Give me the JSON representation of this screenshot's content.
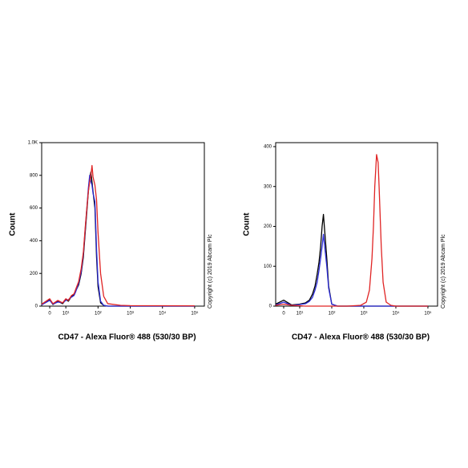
{
  "chart_data": [
    {
      "type": "line",
      "x_label": "CD47 - Alexa Fluor® 488 (530/30 BP)",
      "y_label": "Count",
      "copyright": "Copyright (c) 2019 Abcam Plc",
      "xscale": "biexponential",
      "xlim": [
        -5,
        200000
      ],
      "xticks": [
        0,
        {
          "value": 10,
          "label": "10¹"
        },
        {
          "value": 100,
          "label": "10²"
        },
        {
          "value": 1000,
          "label": "10³"
        },
        {
          "value": 10000,
          "label": "10⁴"
        },
        {
          "value": 100000,
          "label": "10⁵"
        }
      ],
      "ylim": [
        0,
        1000
      ],
      "yticks": [
        0,
        200,
        400,
        600,
        800,
        {
          "value": 1000,
          "label": "1.0K"
        }
      ],
      "x": [
        -5,
        0,
        2,
        5,
        8,
        10,
        12,
        15,
        18,
        20,
        25,
        30,
        35,
        40,
        45,
        50,
        55,
        60,
        65,
        70,
        80,
        90,
        100,
        120,
        150,
        200,
        500,
        1000,
        100000
      ],
      "series": [
        {
          "color": "#000000",
          "values": [
            10,
            40,
            10,
            30,
            15,
            40,
            30,
            60,
            70,
            90,
            130,
            200,
            300,
            450,
            580,
            700,
            780,
            820,
            760,
            700,
            600,
            300,
            120,
            20,
            5,
            0,
            0,
            0,
            0
          ]
        },
        {
          "color": "#2a2ad6",
          "values": [
            8,
            35,
            12,
            25,
            20,
            35,
            40,
            55,
            65,
            85,
            140,
            210,
            320,
            470,
            600,
            720,
            800,
            760,
            740,
            690,
            640,
            350,
            150,
            30,
            5,
            0,
            0,
            0,
            0
          ]
        },
        {
          "color": "#e02424",
          "values": [
            12,
            45,
            15,
            35,
            20,
            45,
            35,
            65,
            75,
            100,
            150,
            230,
            330,
            480,
            600,
            700,
            760,
            800,
            860,
            790,
            740,
            650,
            450,
            200,
            60,
            15,
            5,
            3,
            2
          ]
        }
      ]
    },
    {
      "type": "line",
      "x_label": "CD47 - Alexa Fluor® 488 (530/30 BP)",
      "y_label": "Count",
      "copyright": "Copyright (c) 2019 Abcam Plc",
      "xscale": "biexponential",
      "xlim": [
        -5,
        200000
      ],
      "xticks": [
        0,
        {
          "value": 10,
          "label": "10¹"
        },
        {
          "value": 100,
          "label": "10²"
        },
        {
          "value": 1000,
          "label": "10³"
        },
        {
          "value": 10000,
          "label": "10⁴"
        },
        {
          "value": 100000,
          "label": "10⁵"
        }
      ],
      "ylim": [
        0,
        410
      ],
      "yticks": [
        0,
        100,
        200,
        300,
        400
      ],
      "x": [
        -5,
        0,
        5,
        10,
        15,
        20,
        25,
        30,
        35,
        40,
        45,
        50,
        55,
        60,
        70,
        80,
        100,
        150,
        300,
        800,
        1200,
        1500,
        1800,
        2000,
        2200,
        2500,
        2800,
        3000,
        3500,
        4000,
        5000,
        7000,
        10000,
        100000
      ],
      "series": [
        {
          "color": "#000000",
          "values": [
            5,
            15,
            3,
            5,
            8,
            15,
            30,
            50,
            80,
            110,
            150,
            200,
            230,
            190,
            120,
            50,
            5,
            0,
            0,
            0,
            0,
            0,
            0,
            0,
            0,
            0,
            0,
            0,
            0,
            0,
            0,
            0,
            0,
            0
          ]
        },
        {
          "color": "#2a2ad6",
          "values": [
            3,
            10,
            2,
            4,
            6,
            12,
            22,
            40,
            60,
            90,
            120,
            150,
            180,
            150,
            100,
            45,
            5,
            0,
            0,
            0,
            0,
            0,
            0,
            0,
            0,
            0,
            0,
            0,
            0,
            0,
            0,
            0,
            0,
            0
          ]
        },
        {
          "color": "#e02424",
          "values": [
            2,
            5,
            2,
            1,
            0,
            0,
            0,
            0,
            0,
            0,
            0,
            0,
            0,
            0,
            0,
            0,
            0,
            0,
            0,
            2,
            10,
            40,
            120,
            200,
            300,
            380,
            360,
            300,
            150,
            60,
            10,
            2,
            0,
            0
          ]
        }
      ]
    }
  ]
}
